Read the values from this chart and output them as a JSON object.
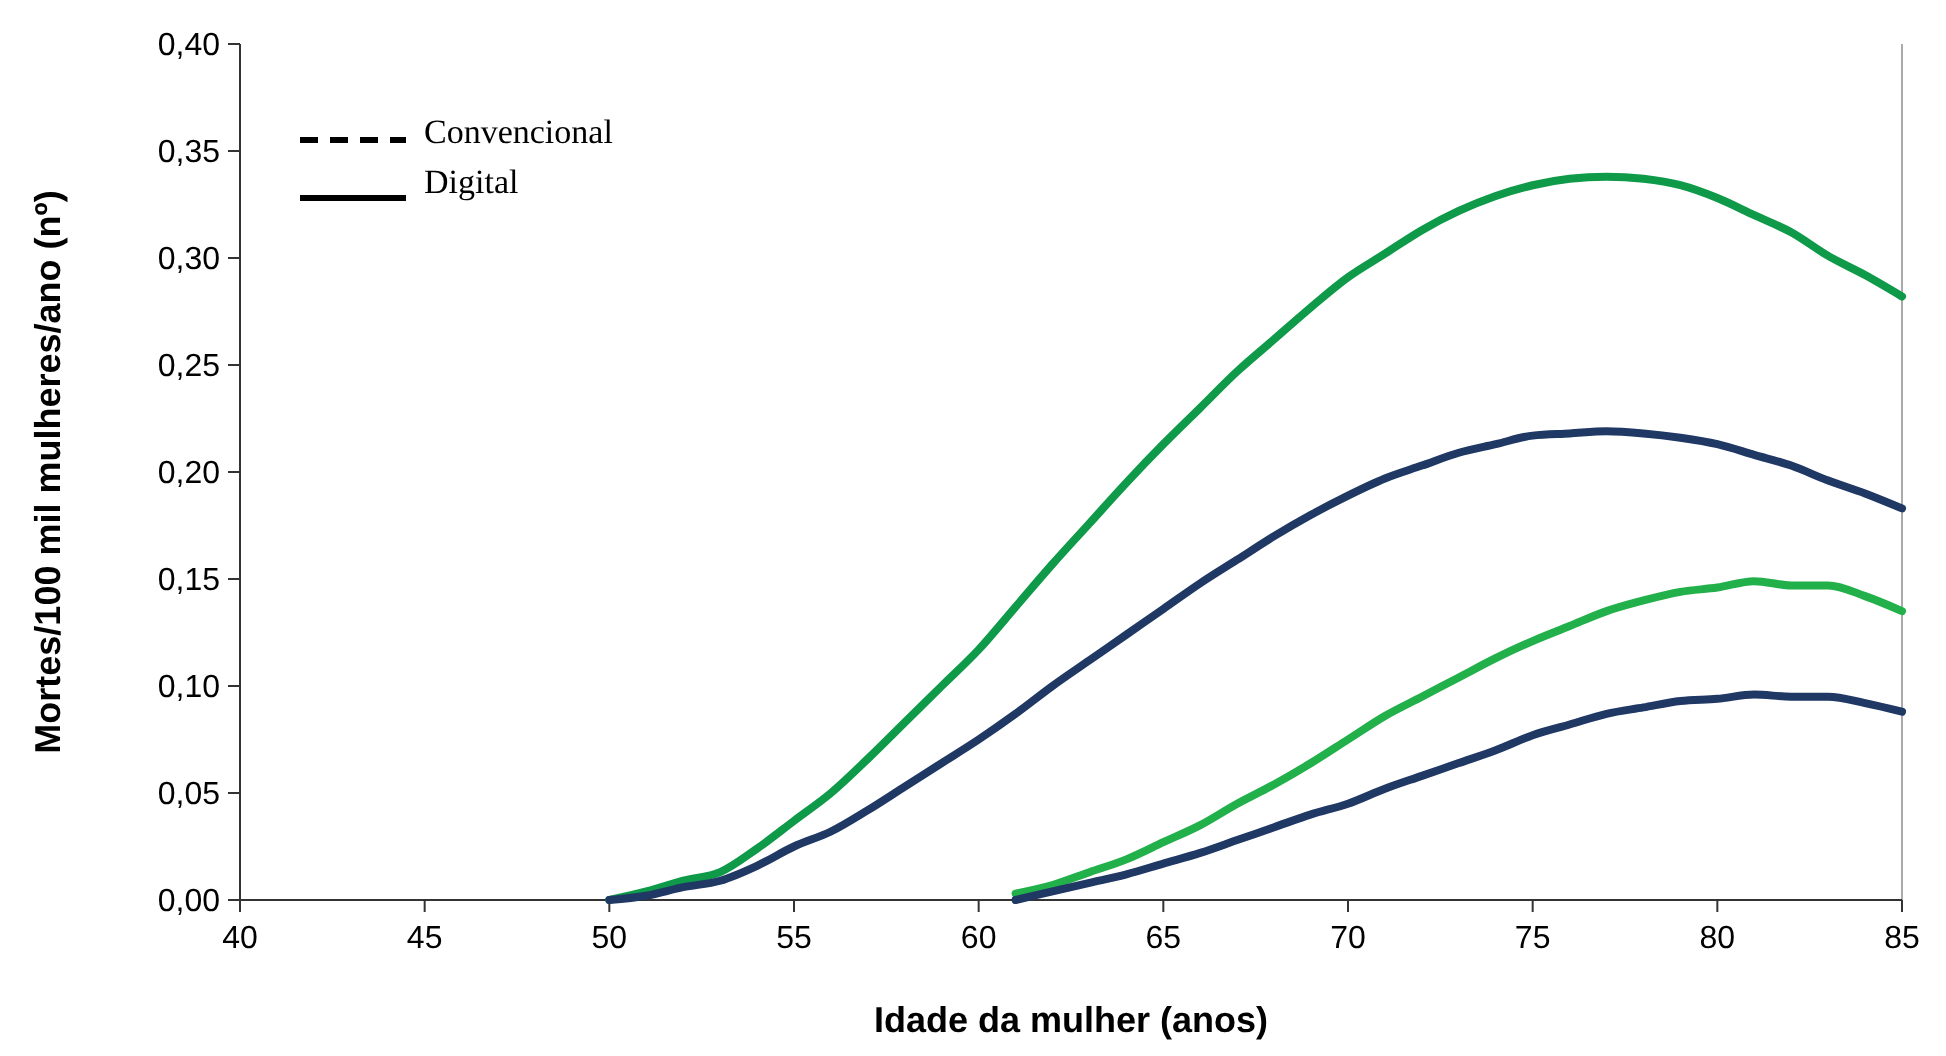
{
  "chart_data": {
    "type": "line",
    "xlabel": "Idade da mulher (anos)",
    "ylabel": "Mortes/100 mil mulheres/ano (nº)",
    "xlim": [
      40,
      85
    ],
    "xticks": [
      40,
      45,
      50,
      55,
      60,
      65,
      70,
      75,
      80,
      85
    ],
    "ylim": [
      0,
      0.4
    ],
    "yticks": [
      {
        "value": 0,
        "label": "0,00"
      },
      {
        "value": 0.05,
        "label": "0,05"
      },
      {
        "value": 0.1,
        "label": "0,10"
      },
      {
        "value": 0.15,
        "label": "0,15"
      },
      {
        "value": 0.2,
        "label": "0,20"
      },
      {
        "value": 0.25,
        "label": "0,25"
      },
      {
        "value": 0.3,
        "label": "0,30"
      },
      {
        "value": 0.35,
        "label": "0,35"
      },
      {
        "value": 0.4,
        "label": "0,40"
      }
    ],
    "grid": false,
    "marker": "none",
    "line_style": "solid",
    "annotations": [
      "Convencional",
      "Digital"
    ],
    "series": [
      {
        "color": "#0e9a48",
        "x": [
          50,
          51,
          52,
          53,
          54,
          55,
          56,
          57,
          58,
          59,
          60,
          61,
          62,
          63,
          64,
          65,
          66,
          67,
          68,
          69,
          70,
          71,
          72,
          73,
          74,
          75,
          76,
          77,
          78,
          79,
          80,
          81,
          82,
          83,
          84,
          85
        ],
        "values": [
          0,
          0.004,
          0.009,
          0.013,
          0.024,
          0.037,
          0.05,
          0.066,
          0.083,
          0.1,
          0.117,
          0.137,
          0.157,
          0.176,
          0.195,
          0.213,
          0.23,
          0.247,
          0.262,
          0.277,
          0.291,
          0.302,
          0.313,
          0.322,
          0.329,
          0.334,
          0.337,
          0.338,
          0.337,
          0.334,
          0.328,
          0.32,
          0.312,
          0.301,
          0.292,
          0.282
        ]
      },
      {
        "color": "#1f3864",
        "x": [
          50,
          51,
          52,
          53,
          54,
          55,
          56,
          57,
          58,
          59,
          60,
          61,
          62,
          63,
          64,
          65,
          66,
          67,
          68,
          69,
          70,
          71,
          72,
          73,
          74,
          75,
          76,
          77,
          78,
          79,
          80,
          81,
          82,
          83,
          84,
          85
        ],
        "values": [
          0,
          0.002,
          0.006,
          0.009,
          0.016,
          0.025,
          0.032,
          0.042,
          0.053,
          0.064,
          0.075,
          0.087,
          0.1,
          0.112,
          0.124,
          0.136,
          0.148,
          0.159,
          0.17,
          0.18,
          0.189,
          0.197,
          0.203,
          0.209,
          0.213,
          0.217,
          0.218,
          0.219,
          0.218,
          0.216,
          0.213,
          0.208,
          0.203,
          0.196,
          0.19,
          0.183
        ]
      },
      {
        "color": "#22b04b",
        "x": [
          61,
          62,
          63,
          64,
          65,
          66,
          67,
          68,
          69,
          70,
          71,
          72,
          73,
          74,
          75,
          76,
          77,
          78,
          79,
          80,
          81,
          82,
          83,
          84,
          85
        ],
        "values": [
          0.003,
          0.007,
          0.013,
          0.019,
          0.027,
          0.035,
          0.045,
          0.054,
          0.064,
          0.075,
          0.086,
          0.095,
          0.104,
          0.113,
          0.121,
          0.128,
          0.135,
          0.14,
          0.144,
          0.146,
          0.149,
          0.147,
          0.147,
          0.142,
          0.135
        ]
      },
      {
        "color": "#1f3864",
        "x": [
          61,
          62,
          63,
          64,
          65,
          66,
          67,
          68,
          69,
          70,
          71,
          72,
          73,
          74,
          75,
          76,
          77,
          78,
          79,
          80,
          81,
          82,
          83,
          84,
          85
        ],
        "values": [
          0,
          0.004,
          0.008,
          0.012,
          0.017,
          0.022,
          0.028,
          0.034,
          0.04,
          0.045,
          0.052,
          0.058,
          0.064,
          0.07,
          0.077,
          0.082,
          0.087,
          0.09,
          0.093,
          0.094,
          0.096,
          0.095,
          0.095,
          0.092,
          0.088
        ]
      }
    ]
  }
}
